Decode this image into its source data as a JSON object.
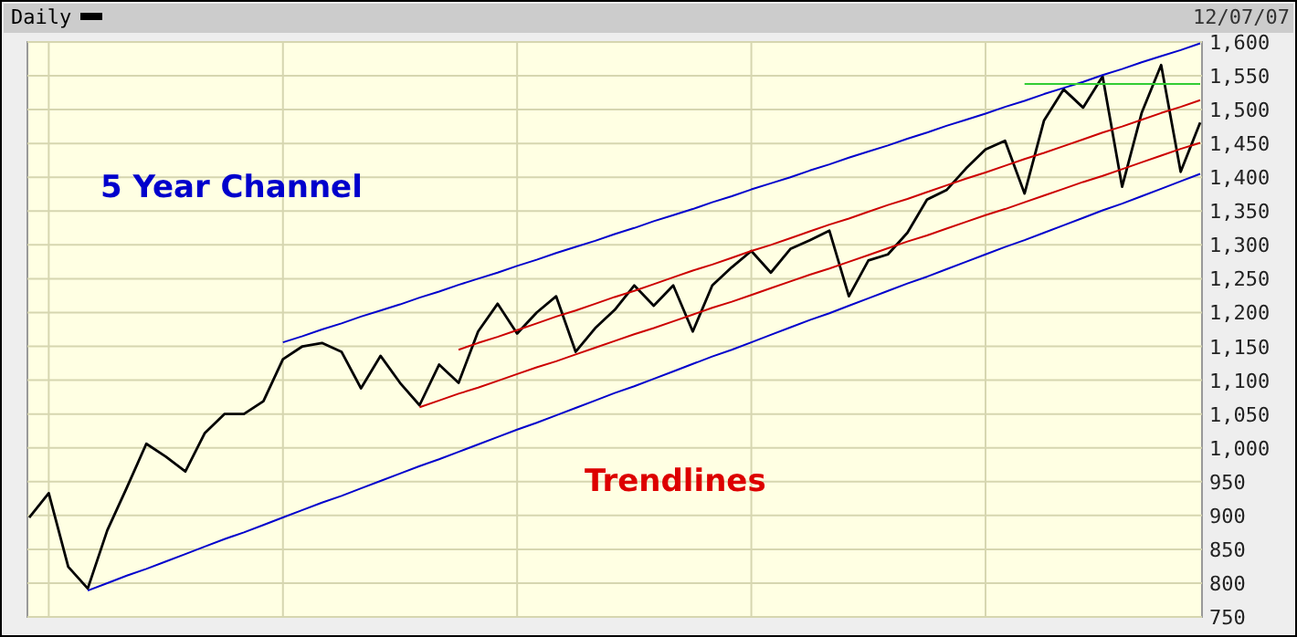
{
  "chart_data": {
    "type": "line",
    "subtitle": "12/07/07",
    "annotations": [
      "5 Year  Channel",
      "Trendlines"
    ],
    "categories": [
      null,
      null,
      null,
      null,
      null,
      null,
      null,
      null,
      null,
      null,
      null,
      null,
      null,
      null,
      null,
      null,
      null,
      null,
      null,
      null,
      null,
      null,
      null,
      null,
      null,
      null,
      null,
      null,
      null,
      null,
      null,
      null,
      null,
      null,
      null,
      null,
      null,
      null,
      null,
      null,
      null,
      null,
      null,
      null,
      null,
      null,
      null,
      null,
      null,
      null,
      null,
      null,
      null,
      null,
      null,
      null,
      null,
      null,
      null,
      null,
      null
    ],
    "ylim": [
      750,
      1600
    ],
    "yticks": [
      {
        "value": 750,
        "label": "750"
      },
      {
        "value": 800,
        "label": "800"
      },
      {
        "value": 850,
        "label": "850"
      },
      {
        "value": 900,
        "label": "900"
      },
      {
        "value": 950,
        "label": "950"
      },
      {
        "value": 1000,
        "label": "1,000"
      },
      {
        "value": 1050,
        "label": "1,050"
      },
      {
        "value": 1100,
        "label": "1,100"
      },
      {
        "value": 1150,
        "label": "1,150"
      },
      {
        "value": 1200,
        "label": "1,200"
      },
      {
        "value": 1250,
        "label": "1,250"
      },
      {
        "value": 1300,
        "label": "1,300"
      },
      {
        "value": 1350,
        "label": "1,350"
      },
      {
        "value": 1400,
        "label": "1,400"
      },
      {
        "value": 1450,
        "label": "1,450"
      },
      {
        "value": 1500,
        "label": "1,500"
      },
      {
        "value": 1550,
        "label": "1,550"
      },
      {
        "value": 1600,
        "label": "1,600"
      }
    ],
    "tick_labels": "y",
    "grid": true,
    "legend": "top left",
    "marker": "none",
    "line_style": "solid",
    "series": [
      {
        "name": "Daily",
        "color": "#000000",
        "values": [
          897,
          933,
          824,
          792,
          878,
          941,
          1006,
          987,
          965,
          1022,
          1050,
          1050,
          1069,
          1131,
          1150,
          1155,
          1142,
          1088,
          1136,
          1096,
          1063,
          1123,
          1096,
          1172,
          1213,
          1169,
          1200,
          1224,
          1142,
          1177,
          1204,
          1240,
          1210,
          1240,
          1172,
          1240,
          1267,
          1291,
          1259,
          1294,
          1307,
          1321,
          1224,
          1277,
          1286,
          1318,
          1367,
          1381,
          1413,
          1441,
          1454,
          1376,
          1484,
          1530,
          1503,
          1549,
          1386,
          1495,
          1566,
          1408,
          1481
        ]
      },
      {
        "color": "#0000cc",
        "values": [
          null,
          null,
          null,
          null,
          null,
          null,
          null,
          null,
          null,
          null,
          null,
          null,
          null,
          1156,
          1165,
          1175,
          1184,
          1194,
          1203,
          1212,
          1222,
          1231,
          1241,
          1250,
          1259,
          1269,
          1278,
          1288,
          1297,
          1306,
          1316,
          1325,
          1335,
          1344,
          1353,
          1363,
          1372,
          1382,
          1391,
          1400,
          1410,
          1419,
          1429,
          1438,
          1447,
          1457,
          1466,
          1476,
          1485,
          1494,
          1504,
          1513,
          1523,
          1532,
          1541,
          1551,
          1560,
          1570,
          1579,
          1588,
          1598
        ]
      },
      {
        "color": "#0000cc",
        "values": [
          null,
          null,
          null,
          789,
          800,
          811,
          821,
          832,
          843,
          854,
          865,
          875,
          886,
          897,
          908,
          919,
          929,
          940,
          951,
          962,
          973,
          983,
          994,
          1005,
          1016,
          1027,
          1037,
          1048,
          1059,
          1070,
          1081,
          1091,
          1102,
          1113,
          1124,
          1135,
          1145,
          1156,
          1167,
          1178,
          1189,
          1199,
          1210,
          1221,
          1232,
          1243,
          1253,
          1264,
          1275,
          1286,
          1297,
          1307,
          1318,
          1329,
          1340,
          1351,
          1361,
          1372,
          1383,
          1394,
          1405
        ]
      },
      {
        "color": "#cc0000",
        "values": [
          null,
          null,
          null,
          null,
          null,
          null,
          null,
          null,
          null,
          null,
          null,
          null,
          null,
          null,
          null,
          null,
          null,
          null,
          null,
          null,
          null,
          null,
          1145,
          1155,
          1164,
          1174,
          1184,
          1194,
          1203,
          1213,
          1223,
          1232,
          1242,
          1252,
          1262,
          1271,
          1281,
          1291,
          1300,
          1310,
          1320,
          1330,
          1339,
          1349,
          1359,
          1368,
          1378,
          1388,
          1398,
          1407,
          1417,
          1427,
          1436,
          1446,
          1456,
          1466,
          1475,
          1485,
          1495,
          1504,
          1514
        ]
      },
      {
        "color": "#cc0000",
        "values": [
          null,
          null,
          null,
          null,
          null,
          null,
          null,
          null,
          null,
          null,
          null,
          null,
          null,
          null,
          null,
          null,
          null,
          null,
          null,
          null,
          1060,
          1070,
          1080,
          1089,
          1099,
          1109,
          1119,
          1128,
          1138,
          1148,
          1158,
          1168,
          1177,
          1187,
          1197,
          1207,
          1216,
          1226,
          1236,
          1246,
          1256,
          1265,
          1275,
          1285,
          1295,
          1305,
          1314,
          1324,
          1334,
          1344,
          1353,
          1363,
          1373,
          1383,
          1393,
          1402,
          1412,
          1422,
          1432,
          1442,
          1451
        ]
      },
      {
        "color": "#33cc33",
        "values": [
          null,
          null,
          null,
          null,
          null,
          null,
          null,
          null,
          null,
          null,
          null,
          null,
          null,
          null,
          null,
          null,
          null,
          null,
          null,
          null,
          null,
          null,
          null,
          null,
          null,
          null,
          null,
          null,
          null,
          null,
          null,
          null,
          null,
          null,
          null,
          null,
          null,
          null,
          null,
          null,
          null,
          null,
          null,
          null,
          null,
          null,
          null,
          null,
          null,
          null,
          null,
          1538,
          1538,
          1538,
          1538,
          1538,
          1538,
          1538,
          1538,
          1538,
          1538
        ]
      }
    ]
  }
}
